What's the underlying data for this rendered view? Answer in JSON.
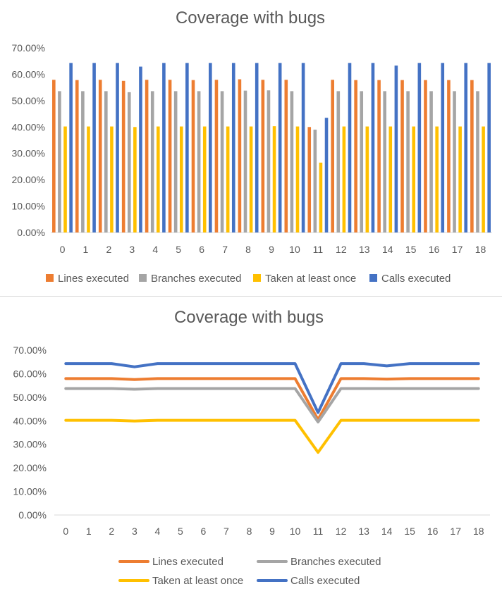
{
  "chart_data": [
    {
      "type": "bar",
      "title": "Coverage with bugs",
      "xlabel": "",
      "ylabel": "",
      "categories": [
        "0",
        "1",
        "2",
        "3",
        "4",
        "5",
        "6",
        "7",
        "8",
        "9",
        "10",
        "11",
        "12",
        "13",
        "14",
        "15",
        "16",
        "17",
        "18"
      ],
      "ylim": [
        0,
        70
      ],
      "yticks": [
        "0.00%",
        "10.00%",
        "20.00%",
        "30.00%",
        "40.00%",
        "50.00%",
        "60.00%",
        "70.00%"
      ],
      "grid": false,
      "legend_position": "bottom",
      "series": [
        {
          "name": "Lines executed",
          "color": "#ED7D31",
          "values": [
            57.9,
            57.8,
            57.9,
            57.5,
            57.9,
            57.9,
            57.8,
            57.9,
            58.1,
            57.9,
            57.9,
            40.0,
            57.9,
            57.8,
            57.8,
            57.8,
            57.8,
            57.8,
            57.8
          ]
        },
        {
          "name": "Branches executed",
          "color": "#A5A5A5",
          "values": [
            53.6,
            53.6,
            53.6,
            53.2,
            53.6,
            53.6,
            53.6,
            53.6,
            53.8,
            53.9,
            53.6,
            39.0,
            53.6,
            53.6,
            53.6,
            53.6,
            53.6,
            53.6,
            53.6
          ]
        },
        {
          "name": "Taken at least once",
          "color": "#FFC000",
          "values": [
            40.2,
            40.2,
            40.2,
            40.0,
            40.2,
            40.2,
            40.2,
            40.2,
            40.2,
            40.3,
            40.2,
            26.5,
            40.2,
            40.2,
            40.2,
            40.2,
            40.2,
            40.2,
            40.2
          ]
        },
        {
          "name": "Calls executed",
          "color": "#4472C4",
          "values": [
            64.3,
            64.3,
            64.3,
            62.9,
            64.3,
            64.3,
            64.3,
            64.3,
            64.3,
            64.3,
            64.3,
            43.5,
            64.3,
            64.3,
            63.3,
            64.3,
            64.3,
            64.3,
            64.3
          ]
        }
      ]
    },
    {
      "type": "line",
      "title": "Coverage with bugs",
      "xlabel": "",
      "ylabel": "",
      "categories": [
        "0",
        "1",
        "2",
        "3",
        "4",
        "5",
        "6",
        "7",
        "8",
        "9",
        "10",
        "11",
        "12",
        "13",
        "14",
        "15",
        "16",
        "17",
        "18"
      ],
      "ylim": [
        0,
        70
      ],
      "yticks": [
        "0.00%",
        "10.00%",
        "20.00%",
        "30.00%",
        "40.00%",
        "50.00%",
        "60.00%",
        "70.00%"
      ],
      "grid": false,
      "legend_position": "bottom",
      "series": [
        {
          "name": "Lines executed",
          "color": "#ED7D31",
          "values": [
            57.9,
            57.9,
            57.9,
            57.5,
            57.9,
            57.9,
            57.9,
            57.9,
            57.9,
            57.9,
            57.9,
            40.5,
            57.9,
            57.9,
            57.7,
            57.9,
            57.9,
            57.9,
            57.9
          ]
        },
        {
          "name": "Branches executed",
          "color": "#A5A5A5",
          "values": [
            53.7,
            53.7,
            53.7,
            53.4,
            53.7,
            53.7,
            53.7,
            53.7,
            53.7,
            53.7,
            53.7,
            39.5,
            53.7,
            53.7,
            53.7,
            53.7,
            53.7,
            53.7,
            53.7
          ]
        },
        {
          "name": "Taken at least once",
          "color": "#FFC000",
          "values": [
            40.2,
            40.2,
            40.2,
            39.9,
            40.2,
            40.2,
            40.2,
            40.2,
            40.2,
            40.2,
            40.2,
            26.6,
            40.2,
            40.2,
            40.2,
            40.2,
            40.2,
            40.2,
            40.2
          ]
        },
        {
          "name": "Calls executed",
          "color": "#4472C4",
          "values": [
            64.3,
            64.3,
            64.3,
            62.9,
            64.3,
            64.3,
            64.3,
            64.3,
            64.3,
            64.3,
            64.3,
            43.5,
            64.3,
            64.3,
            63.3,
            64.3,
            64.3,
            64.3,
            64.3
          ]
        }
      ]
    }
  ]
}
